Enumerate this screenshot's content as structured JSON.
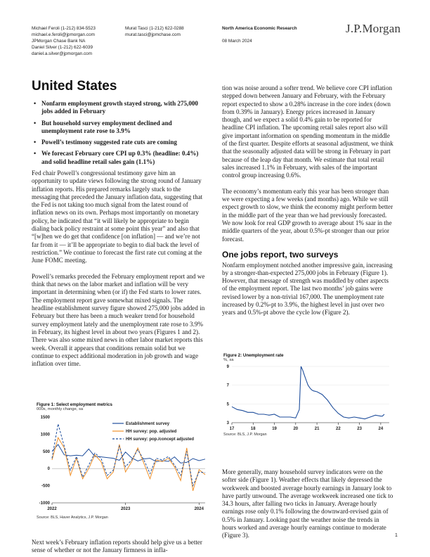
{
  "header": {
    "left": [
      "Michael Feroli  (1-212) 834-5523",
      "michael.e.feroli@jpmorgan.com",
      "JPMorgan Chase Bank NA",
      "Daniel Silver  (1-212) 622-6039",
      "daniel.a.silver@jpmorgan.com"
    ],
    "mid": [
      "Murat Tasci  (1-212) 622-0288",
      "murat.tasci@jpmchase.com"
    ],
    "right_title": "North America Economic Research",
    "date": "08 March 2024",
    "logo": "J.P.Morgan"
  },
  "page_title": "United States",
  "bullets": [
    "Nonfarm employment growth stayed strong, with 275,000 jobs added in February",
    "But household survey employment declined and unemployment rate rose to 3.9%",
    "Powell’s testimony suggested rate cuts are coming",
    "We forecast February core CPI up 0.3% (headline: 0.4%) and solid headline retail sales gain (1.1%)"
  ],
  "left_paragraphs": [
    "Fed chair Powell’s congressional testimony gave him an opportunity to update views following the strong round of January inflation reports. His prepared remarks largely stuck to the messaging that preceded the January inflation data, suggesting that the Fed is not taking too much signal from the latest round of inflation news on its own. Perhaps most importantly on monetary policy, he indicated that “it will likely be appropriate to begin dialing back policy restraint at some point this year” and also that “[w]hen we do get that confidence [on inflation] — and we’re not far from it — it’ll be appropriate to begin to dial back the level of restriction.” We continue to forecast the first rate cut coming at the June FOMC meeting.",
    "Powell’s remarks preceded the February employment report and we think that news on the labor market and inflation will be very important in determining when (or if) the Fed starts to lower rates. The employment report gave somewhat mixed signals. The headline establishment survey figure showed 275,000 jobs added in February but there has been a much weaker trend for household survey employment lately and the unemployment rate rose to 3.9% in February, its highest level in about two years (Figures 1 and 2). There was also some mixed news in other labor market reports this week. Overall it appears that conditions remain solid but we continue to expect additional moderation in job growth and wage inflation over time."
  ],
  "left_bottom": "Next week’s February inflation reports should help give us a better sense of whether or not the January firmness in infla-",
  "right_paragraphs": [
    "tion was noise around a softer trend. We believe core CPI inflation stepped down between January and February, with the February report expected to show a 0.28% increase in the core index (down from 0.39% in January). Energy prices increased in January though, and we expect a solid 0.4% gain to be reported for headline CPI inflation. The upcoming retail sales report also will give important information on spending momentum in the middle of the first quarter. Despite efforts at seasonal adjustment, we think that the seasonally adjusted data will be strong in February in part because of the leap day that month. We estimate that total retail sales increased 1.1% in February, with sales of the important control group increasing 0.6%.",
    "The economy’s momentum early this year has been stronger than we were expecting a few weeks (and months) ago. While we still expect growth to slow, we think the economy might perform better in the middle part of the year than we had previously forecasted. We now look for real GDP growth to average about 1% saar in the middle quarters of the year, about 0.5%-pt stronger than our prior forecast."
  ],
  "section_heading": "One jobs report, two surveys",
  "section_paragraph": "Nonfarm employment notched another impressive gain, increasing by a stronger-than-expected 275,000 jobs in February (Figure 1). However, that message of strength was muddled by other aspects of the employment report. The last two months’ job gains were revised lower by a non-trivial 167,000. The unemployment rate increased by 0.2%-pt to 3.9%, the highest level in just over two years and 0.5%-pt above the cycle low (Figure 2).",
  "right_bottom": "More generally, many household survey indicators were on the softer side (Figure 1). Weather effects that likely depressed the workweek and boosted average hourly earnings in January look to have partly unwound. The average workweek increased one tick to 34.3 hours, after falling two ticks in January. Average hourly earnings rose only 0.1% following the downward-revised gain of 0.5% in January. Looking past the weather noise the trends in hours worked and average hourly earnings continue to moderate (Figure 3).",
  "page_number": "1",
  "figure1": {
    "title": "Figure 1: Select employment metrics",
    "subtitle": "000s, monthly change, sa",
    "source": "Source: BLS, Haver Analytics, J.P. Morgan"
  },
  "figure2": {
    "title": "Figure 2: Unemployment rate",
    "subtitle": "%, sa",
    "source": "Source: BLS, J.P. Morgan"
  },
  "chart_data": [
    {
      "type": "line",
      "title": "Figure 1: Select employment metrics",
      "subtitle": "000s, monthly change, sa",
      "x": [
        "2022-01",
        "2022-02",
        "2022-03",
        "2022-04",
        "2022-05",
        "2022-06",
        "2022-07",
        "2022-08",
        "2022-09",
        "2022-10",
        "2022-11",
        "2022-12",
        "2023-01",
        "2023-02",
        "2023-03",
        "2023-04",
        "2023-05",
        "2023-06",
        "2023-07",
        "2023-08",
        "2023-09",
        "2023-10",
        "2023-11",
        "2023-12",
        "2024-01",
        "2024-02"
      ],
      "x_tick_labels": [
        "2022",
        "2023",
        "2024"
      ],
      "ylim": [
        -1000,
        1500
      ],
      "y_ticks": [
        -1000,
        -500,
        0,
        500,
        1000,
        1500
      ],
      "legend_position": "top-right",
      "series": [
        {
          "name": "Establishment survey",
          "color": "#1f4e9c",
          "style": "solid",
          "values": [
            500,
            700,
            400,
            370,
            390,
            370,
            570,
            350,
            340,
            320,
            300,
            240,
            480,
            310,
            220,
            280,
            300,
            200,
            230,
            210,
            340,
            160,
            180,
            290,
            230,
            275
          ]
        },
        {
          "name": "HH survey: pop. adjusted",
          "color": "#f0912a",
          "style": "solid",
          "values": [
            250,
            900,
            600,
            -200,
            300,
            -300,
            0,
            400,
            200,
            -300,
            -100,
            700,
            -100,
            200,
            600,
            150,
            -300,
            250,
            200,
            300,
            50,
            -350,
            600,
            -650,
            -30,
            -180
          ]
        },
        {
          "name": "HH survey: pop./concept adjusted",
          "color": "#1f4e9c",
          "style": "dashed",
          "values": [
            300,
            1300,
            650,
            -50,
            350,
            -250,
            100,
            450,
            300,
            -200,
            -50,
            650,
            50,
            250,
            550,
            250,
            -150,
            300,
            250,
            350,
            100,
            -200,
            500,
            -500,
            -100,
            -120
          ]
        }
      ]
    },
    {
      "type": "line",
      "title": "Figure 2: Unemployment rate",
      "subtitle": "%, sa",
      "x_tick_labels": [
        "17",
        "18",
        "19",
        "20",
        "21",
        "22",
        "23",
        "24"
      ],
      "xlim": [
        2017,
        2024.4
      ],
      "ylim": [
        3,
        9
      ],
      "y_ticks": [
        3,
        5,
        7,
        9
      ],
      "series": [
        {
          "name": "",
          "color": "#1f4e9c",
          "x": [
            2017.0,
            2017.25,
            2017.5,
            2017.75,
            2018.0,
            2018.25,
            2018.5,
            2018.75,
            2019.0,
            2019.25,
            2019.5,
            2019.75,
            2020.0,
            2020.17,
            2020.25,
            2020.33,
            2020.42,
            2020.5,
            2020.58,
            2020.67,
            2020.75,
            2020.83,
            2021.0,
            2021.25,
            2021.5,
            2021.75,
            2022.0,
            2022.25,
            2022.5,
            2022.75,
            2023.0,
            2023.25,
            2023.5,
            2023.75,
            2024.0,
            2024.08,
            2024.17
          ],
          "y": [
            4.7,
            4.4,
            4.3,
            4.1,
            4.1,
            3.9,
            3.9,
            3.8,
            3.9,
            3.6,
            3.6,
            3.6,
            3.5,
            4.4,
            9.0,
            8.6,
            8.0,
            7.5,
            7.0,
            6.7,
            6.5,
            6.4,
            6.3,
            6.0,
            5.4,
            4.6,
            4.0,
            3.6,
            3.5,
            3.6,
            3.5,
            3.4,
            3.6,
            3.8,
            3.7,
            3.7,
            3.9
          ]
        }
      ]
    }
  ]
}
